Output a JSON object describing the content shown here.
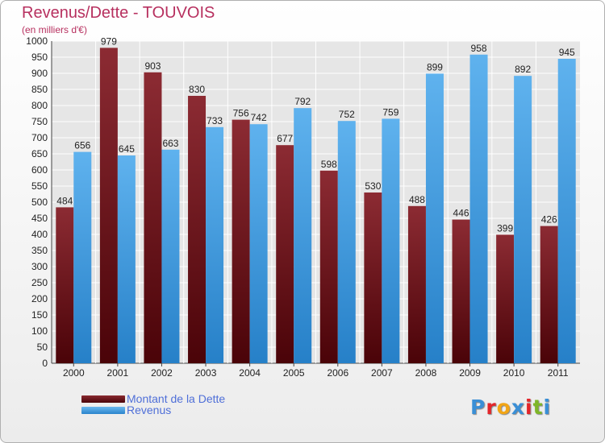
{
  "header": {
    "title": "Revenus/Dette - TOUVOIS",
    "subtitle": "(en milliers d'€)"
  },
  "legend": {
    "items": [
      {
        "label": "Montant de la Dette",
        "color": "#6b0e14"
      },
      {
        "label": "Revenus",
        "color": "#3e9de3"
      }
    ]
  },
  "logo": {
    "letters": [
      "P",
      "r",
      "o",
      "x",
      "i",
      "t",
      "i"
    ],
    "colors": [
      "#3a8fd6",
      "#e3252a",
      "#f2a516",
      "#3a8fd6",
      "#e3252a",
      "#7fb628",
      "#3a8fd6"
    ]
  },
  "chart_data": {
    "type": "bar",
    "title": "Revenus/Dette - TOUVOIS",
    "subtitle": "(en milliers d'€)",
    "categories": [
      "2000",
      "2001",
      "2002",
      "2003",
      "2004",
      "2005",
      "2006",
      "2007",
      "2008",
      "2009",
      "2010",
      "2011"
    ],
    "series": [
      {
        "name": "Montant de la Dette",
        "color": "#6b0e14",
        "values": [
          484,
          979,
          903,
          830,
          756,
          677,
          598,
          530,
          488,
          446,
          399,
          426
        ]
      },
      {
        "name": "Revenus",
        "color": "#3e9de3",
        "values": [
          656,
          645,
          663,
          733,
          742,
          792,
          752,
          759,
          899,
          958,
          892,
          945
        ]
      }
    ],
    "ylim": [
      0,
      1000
    ],
    "ytick_step": 50,
    "grid": true,
    "legend_position": "bottom-left"
  }
}
